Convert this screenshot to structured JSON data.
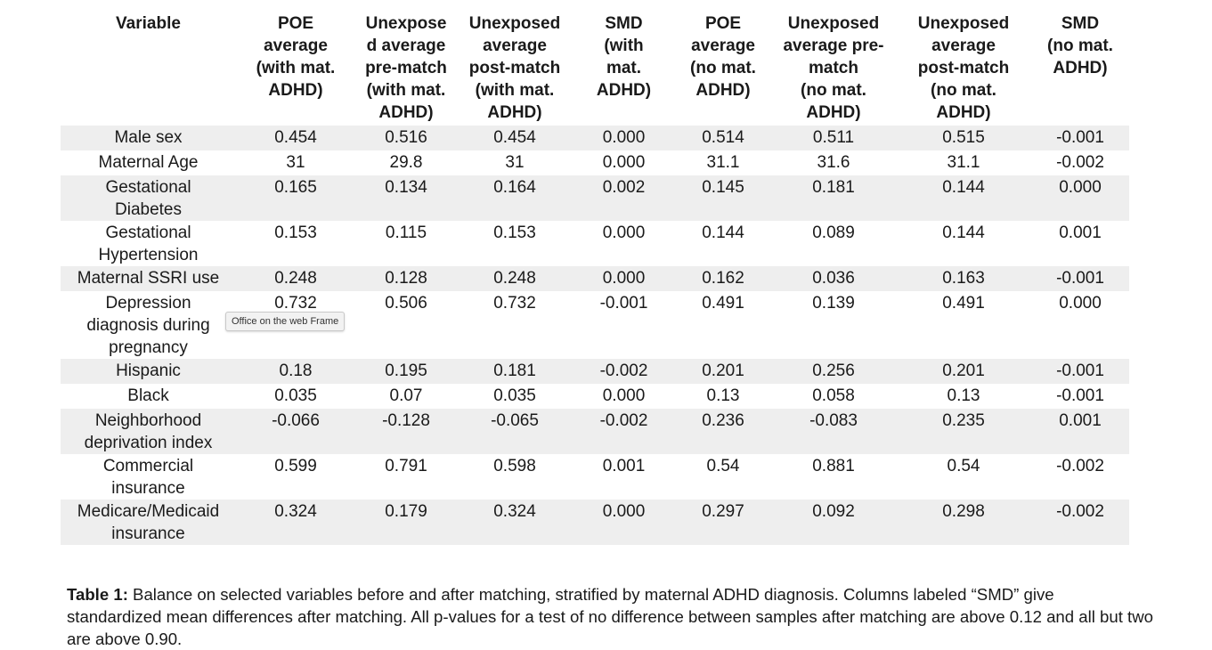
{
  "table": {
    "headers": [
      "Variable",
      "POE\naverage\n(with mat.\nADHD)",
      "Unexpose\nd average\npre-match\n(with mat.\nADHD)",
      "Unexposed\naverage\npost-match\n(with mat.\nADHD)",
      "SMD\n(with\nmat.\nADHD)",
      "POE\naverage\n(no mat.\nADHD)",
      "Unexposed\naverage pre-\nmatch\n(no mat.\nADHD)",
      "Unexposed\naverage\npost-match\n(no mat.\nADHD)",
      "SMD\n(no mat.\nADHD)"
    ],
    "rows": [
      [
        "Male sex",
        "0.454",
        "0.516",
        "0.454",
        "0.000",
        "0.514",
        "0.511",
        "0.515",
        "-0.001"
      ],
      [
        "Maternal Age",
        "31",
        "29.8",
        "31",
        "0.000",
        "31.1",
        "31.6",
        "31.1",
        "-0.002"
      ],
      [
        "Gestational\nDiabetes",
        "0.165",
        "0.134",
        "0.164",
        "0.002",
        "0.145",
        "0.181",
        "0.144",
        "0.000"
      ],
      [
        "Gestational\nHypertension",
        "0.153",
        "0.115",
        "0.153",
        "0.000",
        "0.144",
        "0.089",
        "0.144",
        "0.001"
      ],
      [
        "Maternal SSRI use",
        "0.248",
        "0.128",
        "0.248",
        "0.000",
        "0.162",
        "0.036",
        "0.163",
        "-0.001"
      ],
      [
        "Depression\ndiagnosis during\npregnancy",
        "0.732",
        "0.506",
        "0.732",
        "-0.001",
        "0.491",
        "0.139",
        "0.491",
        "0.000"
      ],
      [
        "Hispanic",
        "0.18",
        "0.195",
        "0.181",
        "-0.002",
        "0.201",
        "0.256",
        "0.201",
        "-0.001"
      ],
      [
        "Black",
        "0.035",
        "0.07",
        "0.035",
        "0.000",
        "0.13",
        "0.058",
        "0.13",
        "-0.001"
      ],
      [
        "Neighborhood\ndeprivation index",
        "-0.066",
        "-0.128",
        "-0.065",
        "-0.002",
        "0.236",
        "-0.083",
        "0.235",
        "0.001"
      ],
      [
        "Commercial\ninsurance",
        "0.599",
        "0.791",
        "0.598",
        "0.001",
        "0.54",
        "0.881",
        "0.54",
        "-0.002"
      ],
      [
        "Medicare/Medicaid\ninsurance",
        "0.324",
        "0.179",
        "0.324",
        "0.000",
        "0.297",
        "0.092",
        "0.298",
        "-0.002"
      ]
    ]
  },
  "caption": {
    "label": "Table 1:",
    "text": " Balance on selected variables before and after matching, stratified by maternal ADHD diagnosis.  Columns labeled “SMD” give standardized mean differences after matching. All p-values for a test of no difference between samples after matching are above 0.12 and all but two are above 0.90."
  },
  "tooltip": {
    "text": "Office on the web Frame"
  }
}
